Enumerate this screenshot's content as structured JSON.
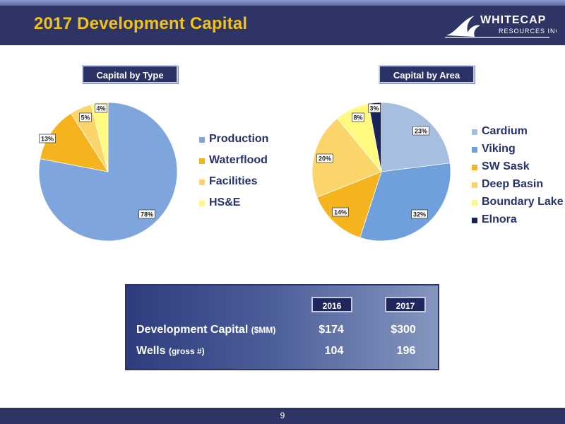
{
  "title": "2017 Development Capital",
  "logo": {
    "line1": "WHITECAP",
    "line2": "RESOURCES INC"
  },
  "page_number": "9",
  "colors": {
    "header": "#2e3564",
    "title": "#f2c21b",
    "legend_text": "#26326a"
  },
  "chart_data": [
    {
      "type": "pie",
      "title": "Capital by Type",
      "legend_position": "right",
      "slices": [
        {
          "label": "Production",
          "value": 78,
          "pct_label": "78%",
          "color": "#7ea6dc"
        },
        {
          "label": "Waterflood",
          "value": 13,
          "pct_label": "13%",
          "color": "#f5b41e"
        },
        {
          "label": "Facilities",
          "value": 5,
          "pct_label": "5%",
          "color": "#fad56a"
        },
        {
          "label": "HS&E",
          "value": 4,
          "pct_label": "4%",
          "color": "#fff97f"
        }
      ]
    },
    {
      "type": "pie",
      "title": "Capital by Area",
      "legend_position": "right",
      "slices": [
        {
          "label": "Cardium",
          "value": 23,
          "pct_label": "23%",
          "color": "#a6bedf"
        },
        {
          "label": "Viking",
          "value": 32,
          "pct_label": "32%",
          "color": "#6fa0dc"
        },
        {
          "label": "SW Sask",
          "value": 14,
          "pct_label": "14%",
          "color": "#f5b41e"
        },
        {
          "label": "Deep Basin",
          "value": 20,
          "pct_label": "20%",
          "color": "#fad56a"
        },
        {
          "label": "Boundary Lake",
          "value": 8,
          "pct_label": "8%",
          "color": "#fff97f"
        },
        {
          "label": "Elnora",
          "value": 3,
          "pct_label": "3%",
          "color": "#1b2459"
        }
      ]
    }
  ],
  "summary_table": {
    "columns": [
      "2016",
      "2017"
    ],
    "rows": [
      {
        "label": "Development Capital",
        "unit": "($MM)",
        "values": [
          "$174",
          "$300"
        ]
      },
      {
        "label": "Wells",
        "unit": "(gross #)",
        "values": [
          "104",
          "196"
        ]
      }
    ]
  }
}
